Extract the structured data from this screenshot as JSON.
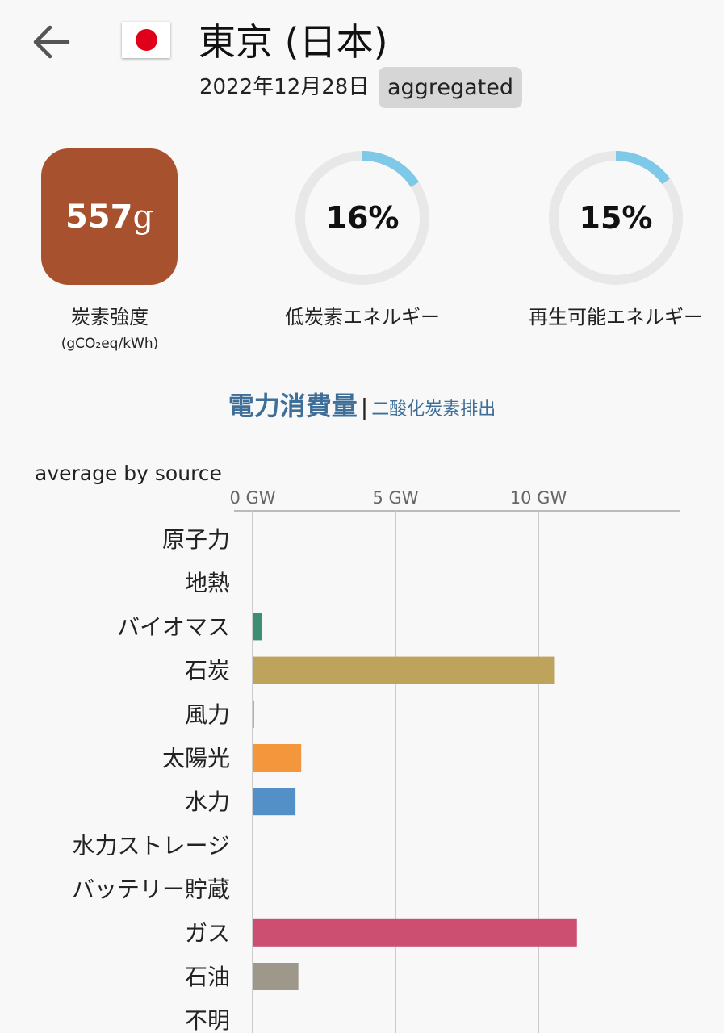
{
  "header": {
    "title": "東京 (日本)",
    "date": "2022年12月28日",
    "badge": "aggregated",
    "back_icon": "arrow-left-icon",
    "flag": "japan-flag-icon"
  },
  "metrics": {
    "carbon_intensity": {
      "value": "557",
      "unit": "g",
      "label": "炭素強度",
      "unit_label": "(gCO₂eq/kWh)",
      "color": "#a8512e"
    },
    "low_carbon": {
      "value": "16%",
      "fraction": 0.16,
      "label": "低炭素エネルギー"
    },
    "renewable": {
      "value": "15%",
      "fraction": 0.15,
      "label": "再生可能エネルギー"
    },
    "ring_color": "#7ec8e8",
    "ring_track_color": "#e8e8e8"
  },
  "toggle": {
    "active": "電力消費量",
    "separator": "|",
    "inactive": "二酸化炭素排出"
  },
  "chart_data": {
    "type": "bar",
    "orientation": "horizontal",
    "title": "average by source",
    "xlabel": "",
    "xlim": [
      0,
      15
    ],
    "xticks": [
      0,
      5,
      10
    ],
    "tick_labels": [
      "0 GW",
      "5 GW",
      "10 GW"
    ],
    "categories": [
      "原子力",
      "地熱",
      "バイオマス",
      "石炭",
      "風力",
      "太陽光",
      "水力",
      "水力ストレージ",
      "バッテリー貯蔵",
      "ガス",
      "石油",
      "不明"
    ],
    "values": [
      0,
      0,
      0.33,
      10.55,
      0.05,
      1.7,
      1.5,
      0,
      0,
      11.35,
      1.6,
      0
    ],
    "colors": [
      "#aedd92",
      "#b05e00",
      "#3e8f72",
      "#bea35d",
      "#74cdb9",
      "#f3963c",
      "#5290c7",
      "#0e4a90",
      "#b76fd4",
      "#cc4f71",
      "#9d988a",
      "#adadad"
    ]
  }
}
